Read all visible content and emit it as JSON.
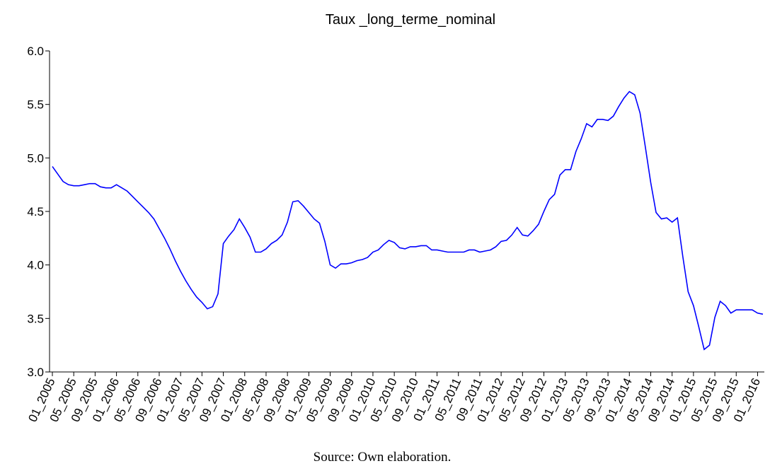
{
  "chart_data": {
    "type": "line",
    "title": "Taux _long_terme_nominal",
    "source": "Source: Own elaboration.",
    "categories": [
      "01_2005",
      null,
      null,
      null,
      "05_2005",
      null,
      null,
      null,
      "09_2005",
      null,
      null,
      null,
      "01_2006",
      null,
      null,
      null,
      "05_2006",
      null,
      null,
      null,
      "09_2006",
      null,
      null,
      null,
      "01_2007",
      null,
      null,
      null,
      "05_2007",
      null,
      null,
      null,
      "09_2007",
      null,
      null,
      null,
      "01_2008",
      null,
      null,
      null,
      "05_2008",
      null,
      null,
      null,
      "09_2008",
      null,
      null,
      null,
      "01_2009",
      null,
      null,
      null,
      "05_2009",
      null,
      null,
      null,
      "09_2009",
      null,
      null,
      null,
      "01_2010",
      null,
      null,
      null,
      "05_2010",
      null,
      null,
      null,
      "09_2010",
      null,
      null,
      null,
      "01_2011",
      null,
      null,
      null,
      "05_2011",
      null,
      null,
      null,
      "09_2011",
      null,
      null,
      null,
      "01_2012",
      null,
      null,
      null,
      "05_2012",
      null,
      null,
      null,
      "09_2012",
      null,
      null,
      null,
      "01_2013",
      null,
      null,
      null,
      "05_2013",
      null,
      null,
      null,
      "09_2013",
      null,
      null,
      null,
      "01_2014",
      null,
      null,
      null,
      "05_2014",
      null,
      null,
      null,
      "09_2014",
      null,
      null,
      null,
      "01_2015",
      null,
      null,
      null,
      "05_2015",
      null,
      null,
      null,
      "09_2015",
      null,
      null,
      null,
      "01_2016",
      null
    ],
    "values": [
      4.92,
      4.85,
      4.78,
      4.75,
      4.74,
      4.74,
      4.75,
      4.76,
      4.76,
      4.73,
      4.72,
      4.72,
      4.75,
      4.72,
      4.69,
      4.64,
      4.59,
      4.54,
      4.49,
      4.43,
      4.34,
      4.25,
      4.15,
      4.04,
      3.94,
      3.85,
      3.77,
      3.7,
      3.65,
      3.59,
      3.61,
      3.73,
      4.2,
      4.27,
      4.33,
      4.43,
      4.35,
      4.26,
      4.12,
      4.12,
      4.15,
      4.2,
      4.23,
      4.28,
      4.4,
      4.59,
      4.6,
      4.55,
      4.49,
      4.43,
      4.39,
      4.22,
      4.0,
      3.97,
      4.01,
      4.01,
      4.02,
      4.04,
      4.05,
      4.07,
      4.12,
      4.14,
      4.19,
      4.23,
      4.21,
      4.16,
      4.15,
      4.17,
      4.17,
      4.18,
      4.18,
      4.14,
      4.14,
      4.13,
      4.12,
      4.12,
      4.12,
      4.12,
      4.14,
      4.14,
      4.12,
      4.13,
      4.14,
      4.17,
      4.22,
      4.23,
      4.28,
      4.35,
      4.28,
      4.27,
      4.32,
      4.38,
      4.5,
      4.61,
      4.66,
      4.84,
      4.89,
      4.89,
      5.06,
      5.18,
      5.32,
      5.29,
      5.36,
      5.36,
      5.35,
      5.39,
      5.48,
      5.56,
      5.62,
      5.59,
      5.42,
      5.1,
      4.77,
      4.49,
      4.43,
      4.44,
      4.4,
      4.44,
      4.08,
      3.75,
      3.62,
      3.42,
      3.21,
      3.25,
      3.51,
      3.66,
      3.62,
      3.55,
      3.58,
      3.58,
      3.58,
      3.58,
      3.55,
      3.54
    ],
    "color": "#0000ff",
    "ylim": [
      3.0,
      6.0
    ],
    "yticks": [
      {
        "value": 3.0,
        "label": "3.0"
      },
      {
        "value": 3.5,
        "label": "3.5"
      },
      {
        "value": 4.0,
        "label": "4.0"
      },
      {
        "value": 4.5,
        "label": "4.5"
      },
      {
        "value": 5.0,
        "label": "5.0"
      },
      {
        "value": 5.5,
        "label": "5.5"
      },
      {
        "value": 6.0,
        "label": "6.0"
      }
    ]
  }
}
